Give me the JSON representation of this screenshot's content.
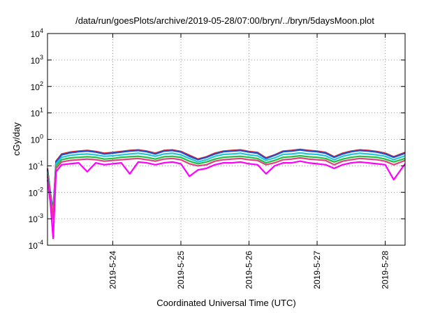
{
  "chart_data": {
    "type": "line",
    "title": "/data/run/goesPlots/archive/2019-05-28/07:00/bryn/../bryn/5daysMoon.plot",
    "xlabel": "Coordinated Universal Time (UTC)",
    "ylabel": "cGy/day",
    "yscale": "log",
    "ylim": [
      0.0001,
      10000
    ],
    "xlim": [
      "2019-05-23T01:00",
      "2019-05-28T07:00"
    ],
    "grid": true,
    "legend": "none",
    "y_ticks": [
      {
        "value": 0.0001,
        "base": "10",
        "exp": "-4"
      },
      {
        "value": 0.001,
        "base": "10",
        "exp": "-3"
      },
      {
        "value": 0.01,
        "base": "10",
        "exp": "-2"
      },
      {
        "value": 0.1,
        "base": "10",
        "exp": "-1"
      },
      {
        "value": 1,
        "base": "10",
        "exp": "0"
      },
      {
        "value": 10,
        "base": "10",
        "exp": "1"
      },
      {
        "value": 100,
        "base": "10",
        "exp": "2"
      },
      {
        "value": 1000,
        "base": "10",
        "exp": "3"
      },
      {
        "value": 10000,
        "base": "10",
        "exp": "4"
      }
    ],
    "x_ticks": [
      "2019-5-24",
      "2019-5-25",
      "2019-5-26",
      "2019-5-27",
      "2019-5-28"
    ],
    "x": [
      "2019-05-23T01:00",
      "2019-05-23T02:00",
      "2019-05-23T03:00",
      "2019-05-23T04:00",
      "2019-05-23T06:00",
      "2019-05-23T09:00",
      "2019-05-23T12:00",
      "2019-05-23T15:00",
      "2019-05-23T18:00",
      "2019-05-23T21:00",
      "2019-05-24T00:00",
      "2019-05-24T03:00",
      "2019-05-24T06:00",
      "2019-05-24T09:00",
      "2019-05-24T12:00",
      "2019-05-24T15:00",
      "2019-05-24T18:00",
      "2019-05-24T21:00",
      "2019-05-25T00:00",
      "2019-05-25T03:00",
      "2019-05-25T06:00",
      "2019-05-25T09:00",
      "2019-05-25T12:00",
      "2019-05-25T15:00",
      "2019-05-25T18:00",
      "2019-05-25T21:00",
      "2019-05-26T00:00",
      "2019-05-26T03:00",
      "2019-05-26T06:00",
      "2019-05-26T09:00",
      "2019-05-26T12:00",
      "2019-05-26T15:00",
      "2019-05-26T18:00",
      "2019-05-26T21:00",
      "2019-05-27T00:00",
      "2019-05-27T03:00",
      "2019-05-27T06:00",
      "2019-05-27T09:00",
      "2019-05-27T12:00",
      "2019-05-27T15:00",
      "2019-05-27T18:00",
      "2019-05-27T21:00",
      "2019-05-28T00:00",
      "2019-05-28T03:00",
      "2019-05-28T07:00"
    ],
    "series": [
      {
        "color": "#e02020",
        "values": [
          0.08,
          0.01,
          0.002,
          0.15,
          0.28,
          0.33,
          0.36,
          0.38,
          0.35,
          0.3,
          0.32,
          0.35,
          0.38,
          0.4,
          0.36,
          0.3,
          0.38,
          0.4,
          0.35,
          0.25,
          0.18,
          0.22,
          0.3,
          0.36,
          0.38,
          0.4,
          0.35,
          0.32,
          0.2,
          0.26,
          0.36,
          0.38,
          0.42,
          0.38,
          0.36,
          0.32,
          0.22,
          0.3,
          0.36,
          0.4,
          0.38,
          0.35,
          0.3,
          0.22,
          0.32
        ]
      },
      {
        "color": "#2050d0",
        "values": [
          0.07,
          0.009,
          0.0018,
          0.14,
          0.26,
          0.31,
          0.34,
          0.36,
          0.33,
          0.28,
          0.3,
          0.33,
          0.36,
          0.38,
          0.34,
          0.28,
          0.36,
          0.38,
          0.33,
          0.23,
          0.17,
          0.21,
          0.28,
          0.34,
          0.36,
          0.38,
          0.33,
          0.3,
          0.19,
          0.25,
          0.34,
          0.36,
          0.4,
          0.36,
          0.34,
          0.3,
          0.21,
          0.28,
          0.34,
          0.38,
          0.36,
          0.33,
          0.28,
          0.21,
          0.3
        ]
      },
      {
        "color": "#20c8d8",
        "values": [
          0.06,
          0.008,
          0.0015,
          0.12,
          0.21,
          0.25,
          0.27,
          0.28,
          0.26,
          0.23,
          0.24,
          0.26,
          0.28,
          0.3,
          0.27,
          0.23,
          0.28,
          0.3,
          0.26,
          0.19,
          0.14,
          0.17,
          0.23,
          0.27,
          0.28,
          0.3,
          0.26,
          0.24,
          0.16,
          0.2,
          0.27,
          0.28,
          0.31,
          0.28,
          0.27,
          0.24,
          0.17,
          0.23,
          0.27,
          0.3,
          0.28,
          0.26,
          0.23,
          0.17,
          0.24
        ]
      },
      {
        "color": "#20c040",
        "values": [
          0.05,
          0.007,
          0.0012,
          0.1,
          0.17,
          0.2,
          0.21,
          0.22,
          0.21,
          0.18,
          0.19,
          0.21,
          0.22,
          0.23,
          0.21,
          0.18,
          0.22,
          0.23,
          0.21,
          0.15,
          0.12,
          0.14,
          0.18,
          0.21,
          0.22,
          0.23,
          0.21,
          0.19,
          0.13,
          0.16,
          0.21,
          0.22,
          0.24,
          0.22,
          0.21,
          0.19,
          0.14,
          0.18,
          0.21,
          0.23,
          0.22,
          0.21,
          0.18,
          0.14,
          0.19
        ]
      },
      {
        "color": "#e04080",
        "values": [
          0.04,
          0.006,
          0.001,
          0.08,
          0.14,
          0.16,
          0.17,
          0.18,
          0.17,
          0.15,
          0.16,
          0.17,
          0.18,
          0.19,
          0.17,
          0.15,
          0.18,
          0.19,
          0.17,
          0.12,
          0.1,
          0.11,
          0.15,
          0.17,
          0.18,
          0.19,
          0.17,
          0.16,
          0.11,
          0.13,
          0.17,
          0.18,
          0.2,
          0.18,
          0.17,
          0.16,
          0.11,
          0.15,
          0.17,
          0.19,
          0.18,
          0.17,
          0.15,
          0.11,
          0.16
        ]
      },
      {
        "color": "#ff00ff",
        "values": [
          0.03,
          0.004,
          0.00018,
          0.06,
          0.11,
          0.12,
          0.13,
          0.06,
          0.13,
          0.11,
          0.12,
          0.13,
          0.05,
          0.14,
          0.13,
          0.11,
          0.13,
          0.14,
          0.12,
          0.04,
          0.07,
          0.08,
          0.11,
          0.13,
          0.13,
          0.14,
          0.12,
          0.11,
          0.05,
          0.1,
          0.13,
          0.13,
          0.15,
          0.13,
          0.12,
          0.11,
          0.08,
          0.11,
          0.13,
          0.14,
          0.13,
          0.12,
          0.11,
          0.03,
          0.12
        ]
      }
    ]
  }
}
